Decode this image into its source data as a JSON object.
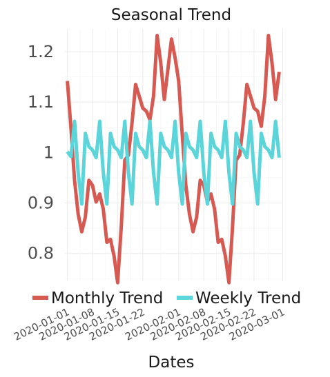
{
  "chart_data": {
    "type": "line",
    "title": "Seasonal Trend",
    "xlabel": "Dates",
    "ylabel": "",
    "ylim": [
      0.745,
      1.245
    ],
    "yticks": [
      0.8,
      0.9,
      1.0,
      1.1,
      1.2
    ],
    "ytick_labels": [
      "0.8",
      "0.9",
      "1",
      "1.1",
      "1.2"
    ],
    "xtick_labels": [
      "2020-01-01",
      "2020-01-08",
      "2020-01-15",
      "2020-01-22",
      "2020-02-01",
      "2020-02-08",
      "2020-02-15",
      "2020-02-22",
      "2020-03-01"
    ],
    "x_start": "2020-01-01",
    "x": [
      "2020-01-01",
      "2020-01-02",
      "2020-01-03",
      "2020-01-04",
      "2020-01-05",
      "2020-01-06",
      "2020-01-07",
      "2020-01-08",
      "2020-01-09",
      "2020-01-10",
      "2020-01-11",
      "2020-01-12",
      "2020-01-13",
      "2020-01-14",
      "2020-01-15",
      "2020-01-16",
      "2020-01-17",
      "2020-01-18",
      "2020-01-19",
      "2020-01-20",
      "2020-01-21",
      "2020-01-22",
      "2020-01-23",
      "2020-01-24",
      "2020-01-25",
      "2020-01-26",
      "2020-01-27",
      "2020-01-28",
      "2020-01-29",
      "2020-01-30",
      "2020-01-31",
      "2020-02-01",
      "2020-02-02",
      "2020-02-03",
      "2020-02-04",
      "2020-02-05",
      "2020-02-06",
      "2020-02-07",
      "2020-02-08",
      "2020-02-09",
      "2020-02-10",
      "2020-02-11",
      "2020-02-12",
      "2020-02-13",
      "2020-02-14",
      "2020-02-15",
      "2020-02-16",
      "2020-02-17",
      "2020-02-18",
      "2020-02-19",
      "2020-02-20",
      "2020-02-21",
      "2020-02-22",
      "2020-02-23",
      "2020-02-24",
      "2020-02-25",
      "2020-02-26",
      "2020-02-27",
      "2020-02-28",
      "2020-02-29"
    ],
    "series": [
      {
        "name": "Monthly Trend",
        "color": "#d65a52",
        "values": [
          1.142,
          1.048,
          0.945,
          0.878,
          0.843,
          0.872,
          0.945,
          0.935,
          0.902,
          0.918,
          0.888,
          0.822,
          0.828,
          0.795,
          0.742,
          0.852,
          0.985,
          0.995,
          1.058,
          1.135,
          1.112,
          1.088,
          1.082,
          1.065,
          1.112,
          1.232,
          1.178,
          1.105,
          1.165,
          1.225,
          1.188,
          1.142,
          1.035,
          0.935,
          0.878,
          0.843,
          0.872,
          0.945,
          0.935,
          0.902,
          0.918,
          0.888,
          0.822,
          0.828,
          0.795,
          0.742,
          0.852,
          0.985,
          0.995,
          1.058,
          1.135,
          1.112,
          1.088,
          1.082,
          1.052,
          1.112,
          1.232,
          1.178,
          1.105,
          1.16
        ]
      },
      {
        "name": "Weekly Trend",
        "color": "#5bd4da",
        "values": [
          1.002,
          0.992,
          1.062,
          0.96,
          0.898,
          1.038,
          1.012,
          1.005,
          0.99,
          1.062,
          0.96,
          0.898,
          1.038,
          1.012,
          1.005,
          0.99,
          1.062,
          0.96,
          0.898,
          1.038,
          1.012,
          1.005,
          0.99,
          1.062,
          0.96,
          0.898,
          1.038,
          1.012,
          1.005,
          0.99,
          1.062,
          0.96,
          0.898,
          1.038,
          1.012,
          1.005,
          0.99,
          1.062,
          0.96,
          0.898,
          1.038,
          1.012,
          1.005,
          0.99,
          1.062,
          0.96,
          0.898,
          1.038,
          1.012,
          1.005,
          0.99,
          1.062,
          0.96,
          0.898,
          1.038,
          1.012,
          1.005,
          0.99,
          1.062,
          0.99
        ]
      }
    ],
    "grid": true,
    "legend_position": "bottom"
  }
}
